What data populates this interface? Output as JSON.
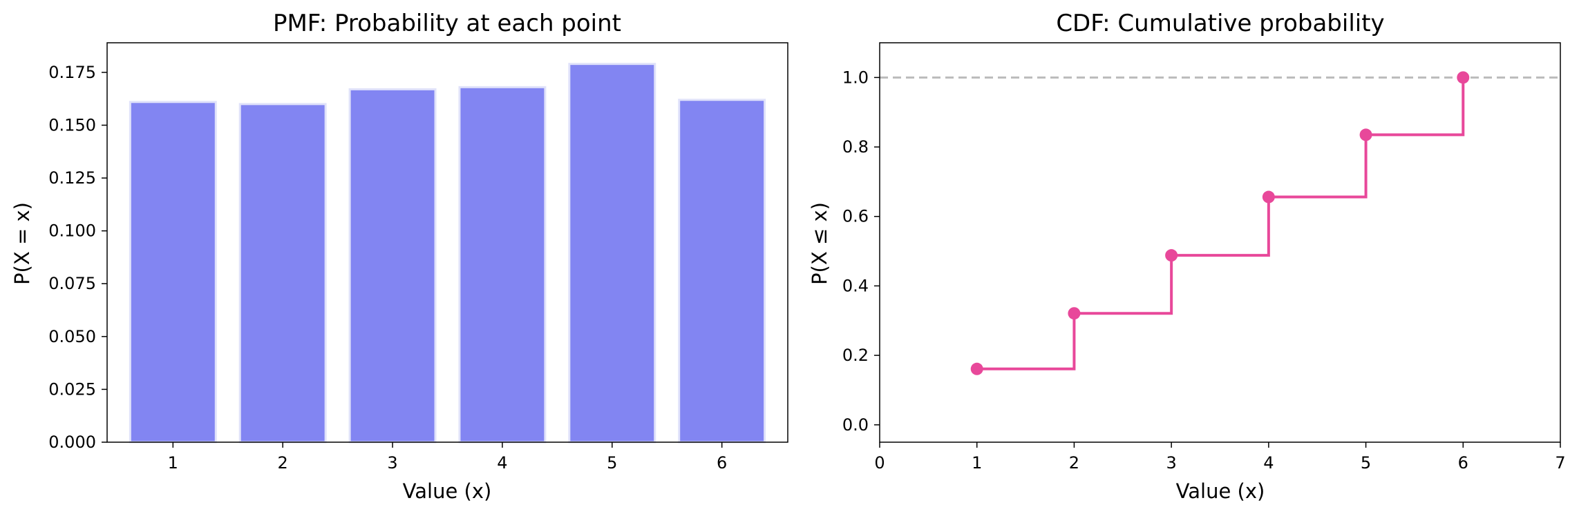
{
  "colors": {
    "pmf_bar": "#8285f2",
    "pmf_bar_edge": "#e0e2fa",
    "cdf_line": "#e8489a",
    "reference_line": "#bbbbbb",
    "axes": "#000000"
  },
  "chart_data": [
    {
      "type": "bar",
      "title": "PMF: Probability at each point",
      "xlabel": "Value (x)",
      "ylabel": "P(X = x)",
      "categories": [
        "1",
        "2",
        "3",
        "4",
        "5",
        "6"
      ],
      "values": [
        0.161,
        0.16,
        0.167,
        0.168,
        0.179,
        0.162
      ],
      "ylim": [
        0,
        0.189
      ],
      "yticks": [
        0.0,
        0.025,
        0.05,
        0.075,
        0.1,
        0.125,
        0.15,
        0.175
      ],
      "ytick_labels": [
        "0.000",
        "0.025",
        "0.050",
        "0.075",
        "0.100",
        "0.125",
        "0.150",
        "0.175"
      ],
      "grid": false
    },
    {
      "type": "line",
      "subtype": "step",
      "title": "CDF: Cumulative probability",
      "xlabel": "Value (x)",
      "ylabel": "P(X ≤ x)",
      "x": [
        1,
        2,
        3,
        4,
        5,
        6
      ],
      "y": [
        0.161,
        0.321,
        0.488,
        0.656,
        0.835,
        1.0
      ],
      "xlim": [
        0,
        7
      ],
      "ylim": [
        -0.05,
        1.1
      ],
      "xticks": [
        0,
        1,
        2,
        3,
        4,
        5,
        6,
        7
      ],
      "xtick_labels": [
        "0",
        "1",
        "2",
        "3",
        "4",
        "5",
        "6",
        "7"
      ],
      "yticks": [
        0.0,
        0.2,
        0.4,
        0.6,
        0.8,
        1.0
      ],
      "ytick_labels": [
        "0.0",
        "0.2",
        "0.4",
        "0.6",
        "0.8",
        "1.0"
      ],
      "reference_line_y": 1.0,
      "grid": false
    }
  ]
}
